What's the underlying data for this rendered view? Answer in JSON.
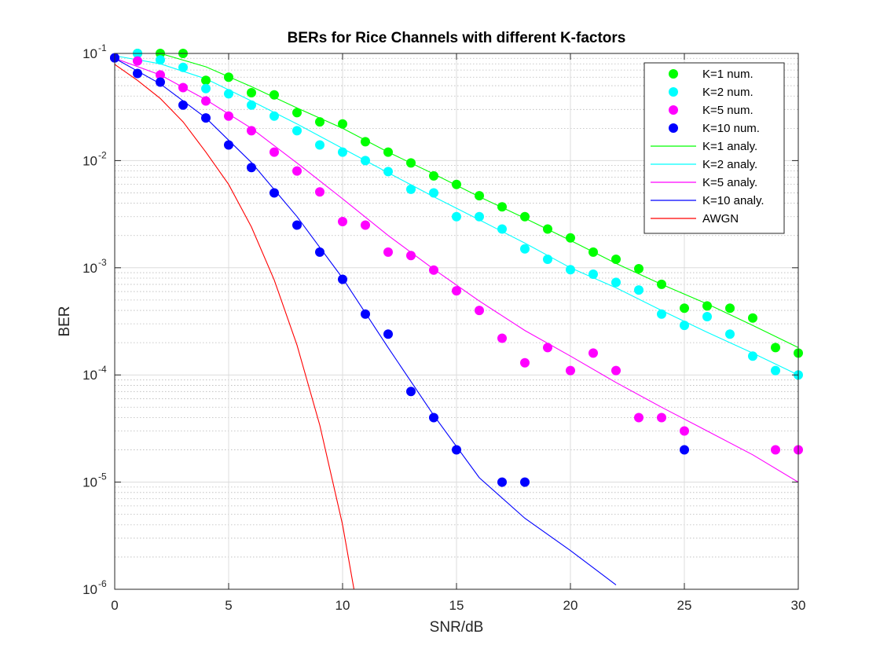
{
  "chart_data": {
    "type": "scatter",
    "title": "BERs for Rice Channels with different K-factors",
    "xlabel": "SNR/dB",
    "ylabel": "BER",
    "xlim": [
      0,
      30
    ],
    "ylim": [
      1e-06,
      0.1
    ],
    "yscale": "log",
    "grid": true,
    "minor_grid": true,
    "legend_position": "top-right",
    "x_ticks": [
      "0",
      "5",
      "10",
      "15",
      "20",
      "25",
      "30"
    ],
    "y_ticks": [
      {
        "base": "10",
        "exp": "-6",
        "value": 1e-06
      },
      {
        "base": "10",
        "exp": "-5",
        "value": 1e-05
      },
      {
        "base": "10",
        "exp": "-4",
        "value": 0.0001
      },
      {
        "base": "10",
        "exp": "-3",
        "value": 0.001
      },
      {
        "base": "10",
        "exp": "-2",
        "value": 0.01
      },
      {
        "base": "10",
        "exp": "-1",
        "value": 0.1
      }
    ],
    "series": [
      {
        "name": "K=1 num.",
        "kind": "markers",
        "color": "#00ff00",
        "x": [
          0,
          1,
          2,
          3,
          4,
          5,
          6,
          7,
          8,
          9,
          10,
          11,
          12,
          13,
          14,
          15,
          16,
          17,
          18,
          19,
          20,
          21,
          22,
          23,
          24,
          25,
          26,
          27,
          28,
          29,
          30
        ],
        "y": [
          0.091,
          0.1,
          0.1,
          0.1,
          0.056,
          0.06,
          0.043,
          0.041,
          0.028,
          0.023,
          0.022,
          0.015,
          0.012,
          0.0095,
          0.0072,
          0.006,
          0.0047,
          0.0037,
          0.003,
          0.0023,
          0.0019,
          0.0014,
          0.0012,
          0.00098,
          0.0007,
          0.00042,
          0.00044,
          0.00042,
          0.00034,
          0.00018,
          0.00016
        ]
      },
      {
        "name": "K=2 num.",
        "kind": "markers",
        "color": "#00ffff",
        "x": [
          0,
          1,
          2,
          3,
          4,
          5,
          6,
          7,
          8,
          9,
          10,
          11,
          12,
          13,
          14,
          15,
          16,
          17,
          18,
          19,
          20,
          21,
          22,
          23,
          24,
          25,
          26,
          27,
          28,
          29,
          30
        ],
        "y": [
          0.091,
          0.1,
          0.087,
          0.074,
          0.047,
          0.042,
          0.033,
          0.026,
          0.019,
          0.014,
          0.012,
          0.01,
          0.0079,
          0.0054,
          0.005,
          0.003,
          0.003,
          0.0023,
          0.0015,
          0.0012,
          0.00096,
          0.00087,
          0.00073,
          0.00062,
          0.00037,
          0.00029,
          0.00035,
          0.00024,
          0.00015,
          0.00011,
          0.0001
        ]
      },
      {
        "name": "K=5 num.",
        "kind": "markers",
        "color": "#ff00ff",
        "x": [
          0,
          1,
          2,
          3,
          4,
          5,
          6,
          7,
          8,
          9,
          10,
          11,
          12,
          13,
          14,
          15,
          16,
          17,
          18,
          19,
          20,
          21,
          22,
          23,
          24,
          25,
          29,
          30
        ],
        "y": [
          0.091,
          0.085,
          0.063,
          0.048,
          0.036,
          0.026,
          0.019,
          0.012,
          0.008,
          0.0051,
          0.0027,
          0.0025,
          0.0014,
          0.0013,
          0.00095,
          0.00061,
          0.0004,
          0.00022,
          0.00013,
          0.00018,
          0.00011,
          0.00016,
          0.00011,
          4e-05,
          4e-05,
          3e-05,
          2e-05,
          2e-05
        ]
      },
      {
        "name": "K=10 num.",
        "kind": "markers",
        "color": "#0000ff",
        "x": [
          0,
          1,
          2,
          3,
          4,
          5,
          6,
          7,
          8,
          9,
          10,
          11,
          12,
          13,
          14,
          15,
          17,
          18,
          25
        ],
        "y": [
          0.091,
          0.065,
          0.054,
          0.033,
          0.025,
          0.014,
          0.0086,
          0.005,
          0.0025,
          0.0014,
          0.00078,
          0.00037,
          0.00024,
          7e-05,
          4e-05,
          2e-05,
          1e-05,
          1e-05,
          2e-05
        ]
      },
      {
        "name": "K=1 analy.",
        "kind": "line",
        "color": "#00ff00",
        "x": [
          0,
          2,
          4,
          6,
          8,
          10,
          12,
          14,
          16,
          18,
          20,
          22,
          24,
          26,
          28,
          30
        ],
        "y": [
          0.1,
          0.1,
          0.075,
          0.049,
          0.031,
          0.02,
          0.012,
          0.0075,
          0.0046,
          0.0029,
          0.0018,
          0.0011,
          0.0007,
          0.00046,
          0.00029,
          0.00018
        ]
      },
      {
        "name": "K=2 analy.",
        "kind": "line",
        "color": "#00ffff",
        "x": [
          0,
          2,
          4,
          6,
          8,
          10,
          12,
          14,
          16,
          18,
          20,
          22,
          24,
          26,
          28,
          30
        ],
        "y": [
          0.095,
          0.08,
          0.058,
          0.036,
          0.022,
          0.013,
          0.0077,
          0.0046,
          0.0028,
          0.0017,
          0.001,
          0.00065,
          0.0004,
          0.00025,
          0.00016,
          0.0001
        ]
      },
      {
        "name": "K=5 analy.",
        "kind": "line",
        "color": "#ff00ff",
        "x": [
          0,
          2,
          4,
          6,
          8,
          10,
          12,
          14,
          16,
          18,
          20,
          22,
          24,
          26,
          28,
          30
        ],
        "y": [
          0.09,
          0.063,
          0.037,
          0.02,
          0.0095,
          0.0044,
          0.002,
          0.00097,
          0.00049,
          0.00026,
          0.00015,
          8.5e-05,
          5e-05,
          3e-05,
          1.8e-05,
          1e-05
        ]
      },
      {
        "name": "K=10 analy.",
        "kind": "line",
        "color": "#0000ff",
        "x": [
          0,
          2,
          4,
          6,
          8,
          10,
          12,
          14,
          16,
          18,
          20,
          22
        ],
        "y": [
          0.09,
          0.052,
          0.025,
          0.0096,
          0.003,
          0.0008,
          0.00018,
          4.2e-05,
          1.1e-05,
          4.6e-06,
          2.3e-06,
          1.1e-06
        ]
      },
      {
        "name": "AWGN",
        "kind": "line",
        "color": "#ff0000",
        "x": [
          0,
          1,
          2,
          3,
          4,
          5,
          6,
          7,
          8,
          9,
          10,
          10.5
        ],
        "y": [
          0.079,
          0.056,
          0.038,
          0.023,
          0.012,
          0.006,
          0.0024,
          0.00077,
          0.00019,
          3.4e-05,
          4e-06,
          1e-06
        ]
      }
    ]
  }
}
